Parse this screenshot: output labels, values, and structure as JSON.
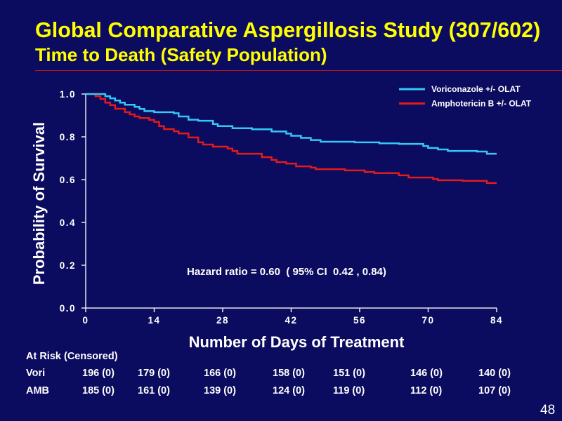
{
  "slide": {
    "page_number": "48",
    "colors": {
      "background": "#0b0b5f",
      "title": "#ffff00",
      "divider": "#b3141e",
      "text": "#ffffff"
    }
  },
  "chart_data": {
    "type": "line",
    "step": true,
    "title": "Global Comparative Aspergillosis Study (307/602)",
    "subtitle": "Time to Death (Safety Population)",
    "xlabel": "Number of Days of Treatment",
    "ylabel": "Probability of Survival",
    "xlim": [
      0,
      84
    ],
    "ylim": [
      0,
      1
    ],
    "xticks": [
      "0",
      "14",
      "28",
      "42",
      "56",
      "70",
      "84"
    ],
    "yticks": [
      "0.0",
      "0.2",
      "0.4",
      "0.6",
      "0.8",
      "1.0"
    ],
    "grid": false,
    "legend": "top-right",
    "annotation": "Hazard ratio = 0.60  ( 95% CI  0.42 , 0.84)",
    "series": [
      {
        "name": "Voriconazole +/- OLAT",
        "color": "#35c8f5",
        "x": [
          0,
          4,
          5,
          6,
          7,
          8,
          10,
          11,
          12,
          14,
          18,
          19,
          21,
          23,
          26,
          27,
          30,
          34,
          38,
          41,
          42,
          44,
          46,
          48,
          55,
          60,
          64,
          69,
          70,
          72,
          74,
          80,
          82,
          84
        ],
        "y": [
          1.0,
          0.99,
          0.98,
          0.97,
          0.96,
          0.95,
          0.94,
          0.93,
          0.92,
          0.915,
          0.91,
          0.895,
          0.88,
          0.875,
          0.86,
          0.85,
          0.84,
          0.835,
          0.825,
          0.815,
          0.805,
          0.795,
          0.785,
          0.777,
          0.774,
          0.77,
          0.767,
          0.757,
          0.748,
          0.741,
          0.734,
          0.731,
          0.721,
          0.721
        ]
      },
      {
        "name": "Amphotericin B +/- OLAT",
        "color": "#e31b1b",
        "x": [
          0,
          2,
          3,
          4,
          5,
          6,
          8,
          9,
          10,
          11,
          13,
          14,
          15,
          16,
          18,
          19,
          21,
          23,
          24,
          26,
          29,
          30,
          31,
          36,
          38,
          39,
          41,
          43,
          46,
          47,
          53,
          57,
          59,
          64,
          66,
          71,
          72,
          77,
          82,
          84
        ],
        "y": [
          1.0,
          0.99,
          0.977,
          0.96,
          0.948,
          0.931,
          0.915,
          0.905,
          0.895,
          0.888,
          0.879,
          0.87,
          0.85,
          0.836,
          0.826,
          0.816,
          0.797,
          0.774,
          0.764,
          0.754,
          0.745,
          0.734,
          0.721,
          0.705,
          0.692,
          0.682,
          0.675,
          0.662,
          0.656,
          0.649,
          0.643,
          0.636,
          0.63,
          0.62,
          0.61,
          0.603,
          0.597,
          0.594,
          0.584,
          0.584
        ]
      }
    ]
  },
  "at_risk": {
    "header": "At Risk (Censored)",
    "rows": [
      {
        "label": "Vori",
        "values": [
          "196 (0)",
          "179 (0)",
          "166 (0)",
          "158 (0)",
          "151 (0)",
          "146 (0)",
          "140 (0)"
        ]
      },
      {
        "label": "AMB",
        "values": [
          "185 (0)",
          "161 (0)",
          "139 (0)",
          "124 (0)",
          "119 (0)",
          "112 (0)",
          "107 (0)"
        ]
      }
    ]
  }
}
